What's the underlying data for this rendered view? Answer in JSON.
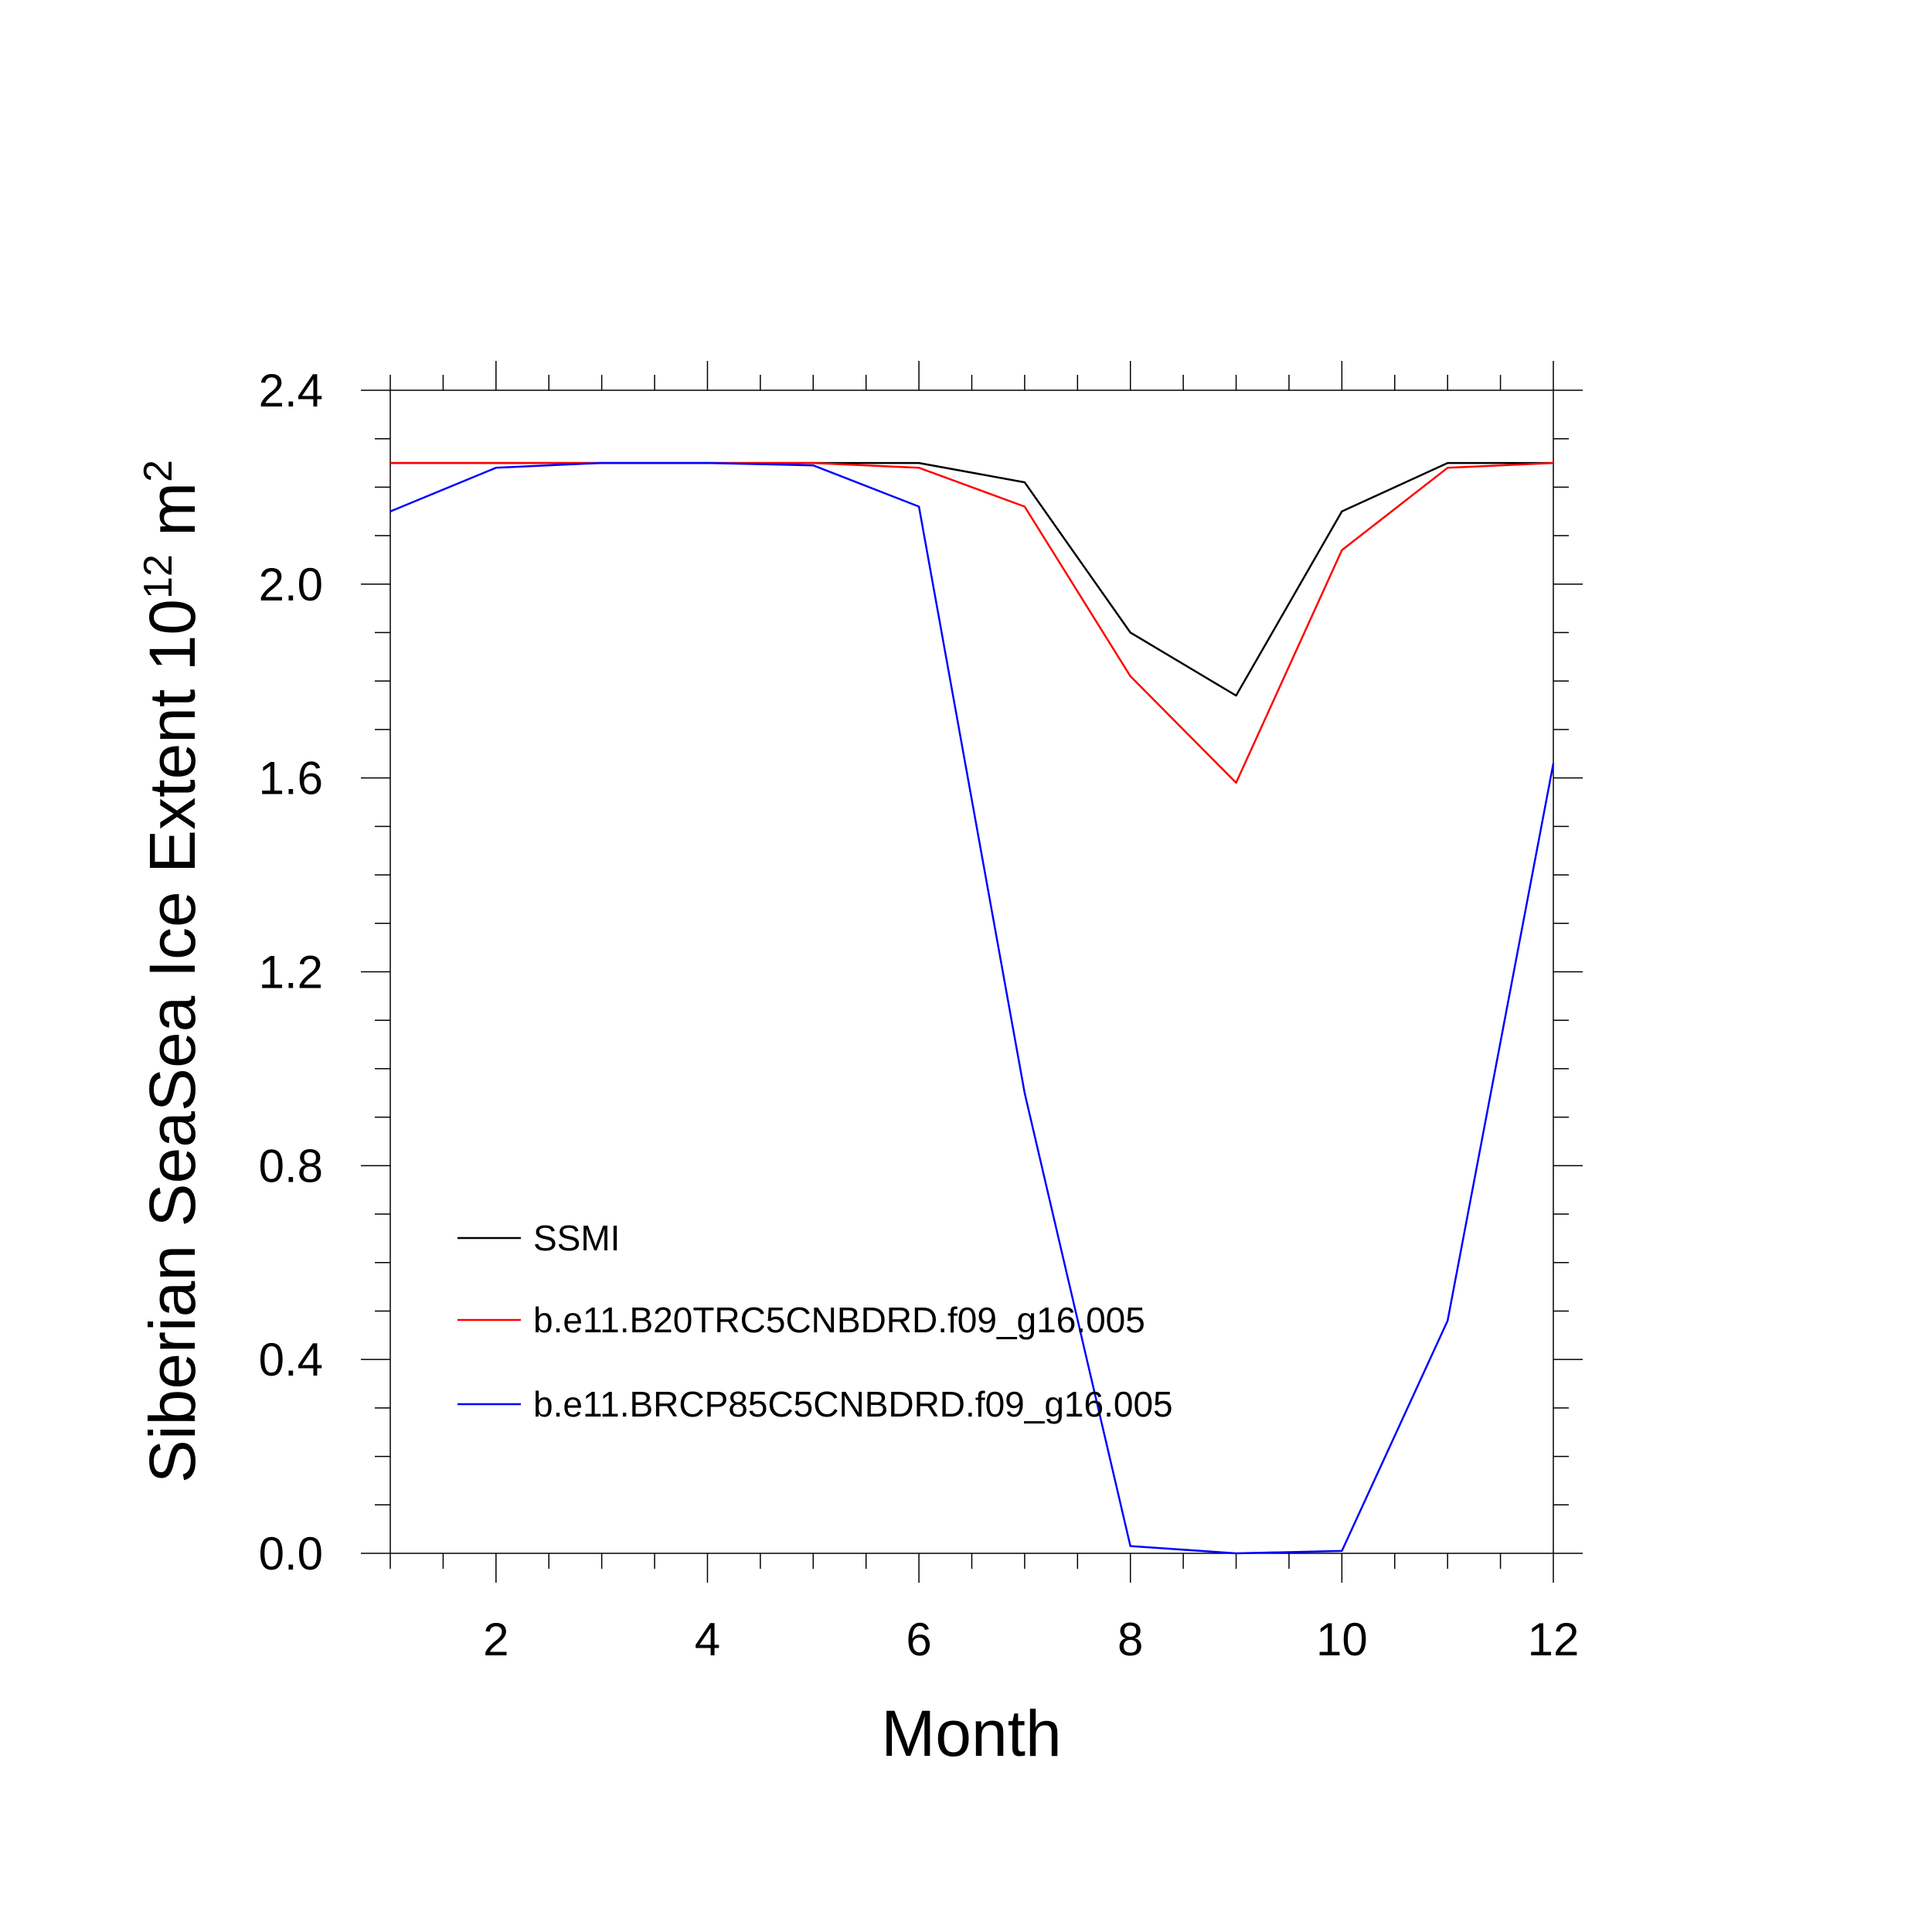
{
  "chart_data": {
    "type": "line",
    "title": "",
    "xlabel": "Month",
    "ylabel_main": "Siberian SeaSea Ice Extent 10",
    "ylabel_exp": "12",
    "ylabel_unit": " m",
    "ylabel_unit_exp": "2",
    "xlim": [
      1,
      12
    ],
    "ylim": [
      0,
      2.4
    ],
    "xticks": [
      2,
      4,
      6,
      8,
      10,
      12
    ],
    "xtick_labels": [
      "2",
      "4",
      "6",
      "8",
      "10",
      "12"
    ],
    "yticks": [
      0,
      0.4,
      0.8,
      1.2,
      1.6,
      2.0,
      2.4
    ],
    "ytick_labels": [
      "0.0",
      "0.4",
      "0.8",
      "1.2",
      "1.6",
      "2.0",
      "2.4"
    ],
    "grid": false,
    "legend_position": "lower-left",
    "x": [
      1,
      2,
      3,
      4,
      5,
      6,
      7,
      8,
      9,
      10,
      11,
      12
    ],
    "series": [
      {
        "name": "SSMI",
        "color": "#000000",
        "values": [
          2.25,
          2.25,
          2.25,
          2.25,
          2.25,
          2.25,
          2.21,
          1.9,
          1.77,
          2.15,
          2.25,
          2.25
        ]
      },
      {
        "name": "b.e11.B20TRC5CNBDRD.f09_g16.005",
        "color": "#ff0000",
        "values": [
          2.25,
          2.25,
          2.25,
          2.25,
          2.25,
          2.24,
          2.16,
          1.81,
          1.59,
          2.07,
          2.24,
          2.25
        ]
      },
      {
        "name": "b.e11.BRCP85C5CNBDRD.f09_g16.005",
        "color": "#0000ff",
        "values": [
          2.15,
          2.24,
          2.25,
          2.25,
          2.245,
          2.16,
          0.95,
          0.015,
          0.0,
          0.005,
          0.48,
          1.63
        ]
      }
    ]
  }
}
